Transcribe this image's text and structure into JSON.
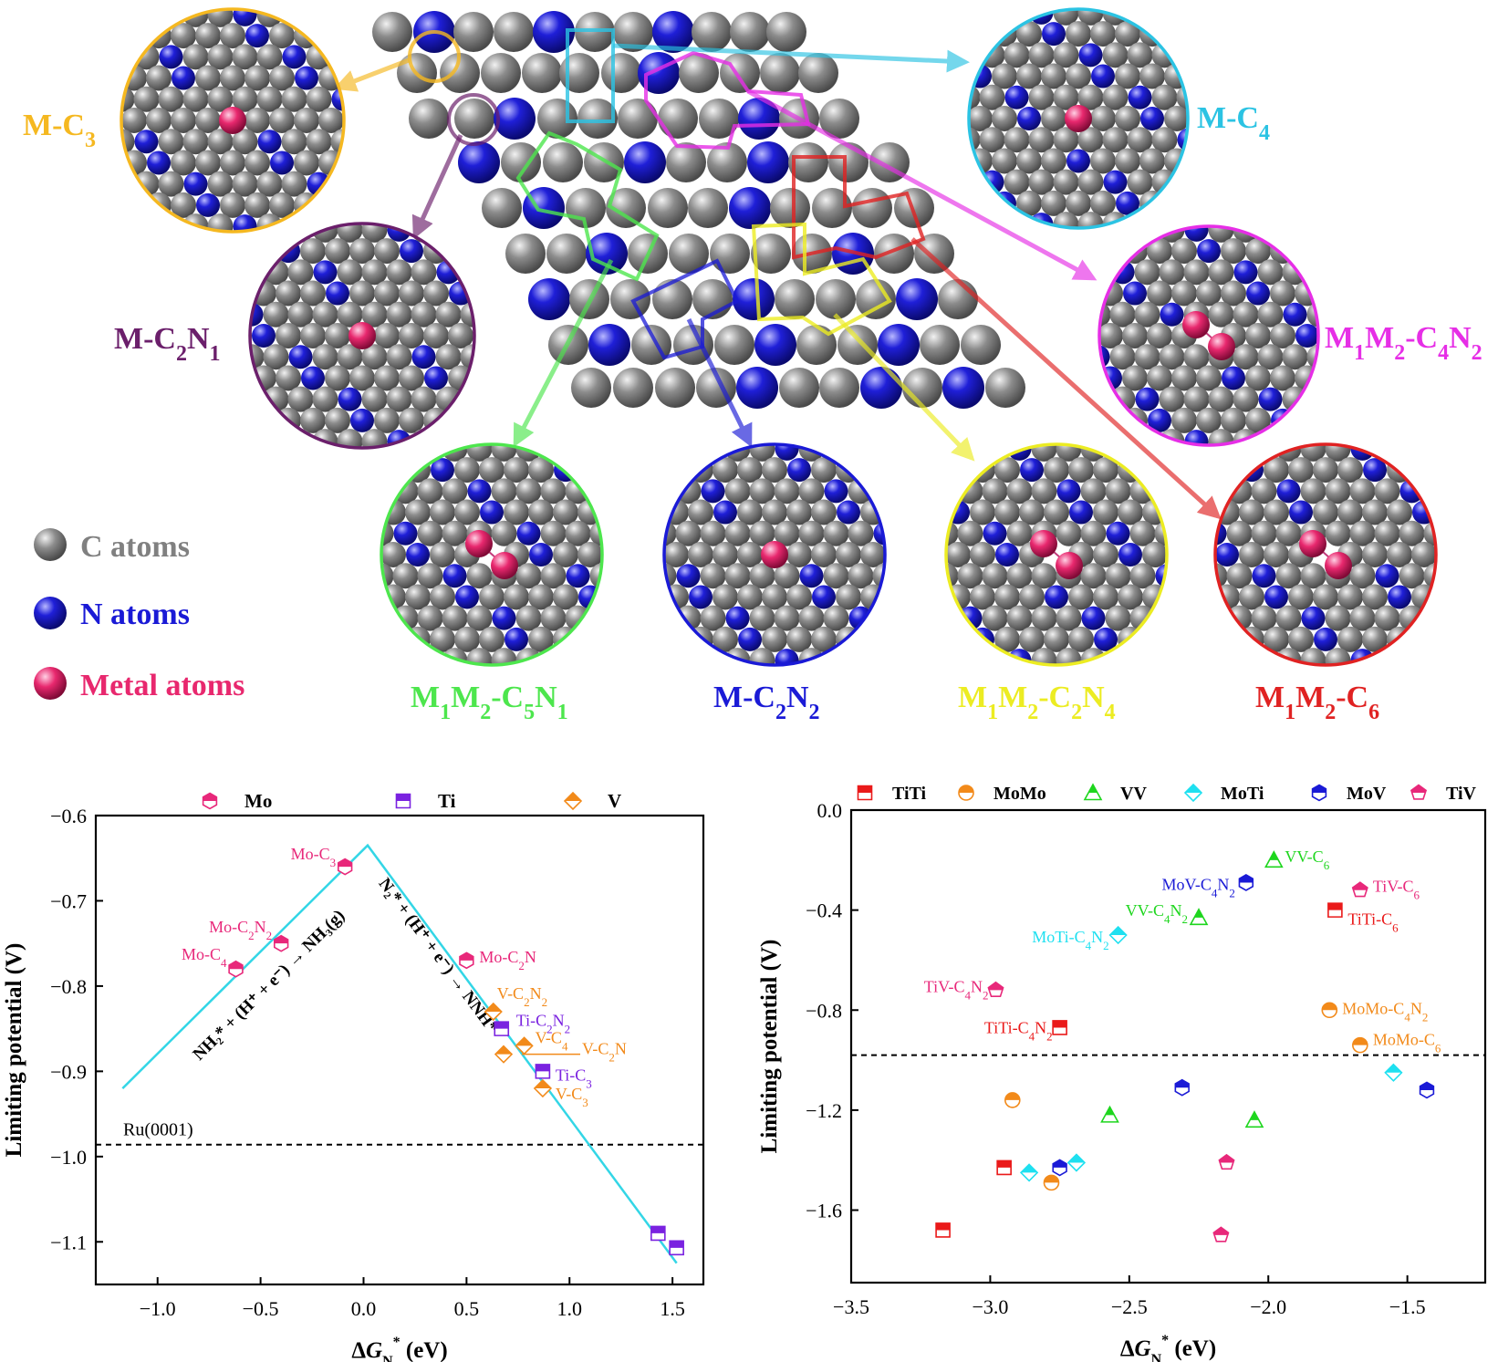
{
  "colors": {
    "carbon": "#7f7f7f",
    "nitrogen": "#1a1ad6",
    "metal": "#e8286e",
    "cyan_line": "#33d6e6",
    "M-C3": "#f5b820",
    "M-C4": "#2bc3e3",
    "M-C2N1": "#6b1f6b",
    "M1M2-C4N2": "#e62ee6",
    "M1M2-C5N1": "#4de64d",
    "M-C2N2": "#1a1ad6",
    "M1M2-C2N4": "#ecec22",
    "M1M2-C6": "#e02222",
    "Mo": "#e8287a",
    "Ti": "#7a22e0",
    "V": "#f28a1a",
    "TiTi": "#ea1a1a",
    "MoMo": "#f28a1a",
    "VV": "#1ed61e",
    "MoTi": "#1ee0f0",
    "MoV": "#1a1ad6",
    "TiV": "#e8287a"
  },
  "structure": {
    "site_labels": {
      "M-C3": "M-C3",
      "M-C4": "M-C4",
      "M-C2N1": "M-C2N1",
      "M1M2-C4N2": "M1M2-C4N2",
      "M1M2-C5N1": "M1M2-C5N1",
      "M-C2N2": "M-C2N2",
      "M1M2-C2N4": "M1M2-C2N4",
      "M1M2-C6": "M1M2-C6"
    },
    "legend": {
      "c_atoms": "C atoms",
      "n_atoms": "N atoms",
      "metal_atoms": "Metal atoms"
    }
  },
  "chart_data": [
    {
      "type": "scatter",
      "xlabel": "ΔGN* (eV)",
      "ylabel": "Limiting potential (V)",
      "xlim": [
        -1.3,
        1.65
      ],
      "ylim": [
        -1.15,
        -0.6
      ],
      "xticks": [
        -1.0,
        -0.5,
        0.0,
        0.5,
        1.0,
        1.5
      ],
      "yticks": [
        -0.6,
        -0.7,
        -0.8,
        -0.9,
        -1.0,
        -1.1
      ],
      "xtick_labels": [
        "−1.0",
        "−0.5",
        "0.0",
        "0.5",
        "1.0",
        "1.5"
      ],
      "ytick_labels": [
        "−0.6",
        "−0.7",
        "−0.8",
        "−0.9",
        "−1.0",
        "−1.1"
      ],
      "legend": [
        "Mo",
        "Ti",
        "V"
      ],
      "legend_position": "top",
      "grid": false,
      "reference": {
        "label": "Ru(0001)",
        "y": -0.986
      },
      "volcano": {
        "x": [
          -1.17,
          0.02,
          1.52
        ],
        "y": [
          -0.92,
          -0.635,
          -1.125
        ],
        "left_label": "NH₂* + (H⁺ + e⁻) → NH₃(g)",
        "right_label": "N₂* + (H⁺ + e⁻) → NNH*"
      },
      "series": [
        {
          "name": "Mo",
          "points": [
            {
              "label": "Mo-C3",
              "x": -0.09,
              "y": -0.66
            },
            {
              "label": "Mo-C2N2",
              "x": -0.4,
              "y": -0.75
            },
            {
              "label": "Mo-C4",
              "x": -0.62,
              "y": -0.78
            },
            {
              "label": "Mo-C2N",
              "x": 0.5,
              "y": -0.77
            }
          ]
        },
        {
          "name": "Ti",
          "points": [
            {
              "label": "Ti-C2N2",
              "x": 0.67,
              "y": -0.85
            },
            {
              "label": "Ti-C3",
              "x": 0.87,
              "y": -0.9
            },
            {
              "label": "",
              "x": 1.43,
              "y": -1.09
            },
            {
              "label": "",
              "x": 1.52,
              "y": -1.107
            }
          ]
        },
        {
          "name": "V",
          "points": [
            {
              "label": "V-C2N2",
              "x": 0.63,
              "y": -0.83
            },
            {
              "label": "V-C4",
              "x": 0.78,
              "y": -0.87
            },
            {
              "label": "V-C2N",
              "x": 0.68,
              "y": -0.88
            },
            {
              "label": "V-C3",
              "x": 0.87,
              "y": -0.92
            }
          ]
        }
      ]
    },
    {
      "type": "scatter",
      "xlabel": "ΔGN* (eV)",
      "ylabel": "Limiting potential (V)",
      "xlim": [
        -3.5,
        -1.22
      ],
      "ylim": [
        -1.89,
        0.0
      ],
      "xticks": [
        -3.5,
        -3.0,
        -2.5,
        -2.0,
        -1.5
      ],
      "yticks": [
        0.0,
        -0.4,
        -0.8,
        -1.2,
        -1.6
      ],
      "xtick_labels": [
        "−3.5",
        "−3.0",
        "−2.5",
        "−2.0",
        "−1.5"
      ],
      "ytick_labels": [
        "0.0",
        "−0.4",
        "−0.8",
        "−1.2",
        "−1.6"
      ],
      "legend": [
        "TiTi",
        "MoMo",
        "VV",
        "MoTi",
        "MoV",
        "TiV"
      ],
      "legend_position": "top",
      "grid": false,
      "reference": {
        "label": "",
        "y": -0.98
      },
      "series": [
        {
          "name": "TiTi",
          "points": [
            {
              "label": "TiTi-C6",
              "x": -1.76,
              "y": -0.4
            },
            {
              "label": "TiTi-C4N2",
              "x": -2.75,
              "y": -0.87
            },
            {
              "label": "",
              "x": -2.95,
              "y": -1.43
            },
            {
              "label": "",
              "x": -3.17,
              "y": -1.68
            }
          ]
        },
        {
          "name": "MoMo",
          "points": [
            {
              "label": "MoMo-C4N2",
              "x": -1.78,
              "y": -0.8
            },
            {
              "label": "MoMo-C6",
              "x": -1.67,
              "y": -0.94
            },
            {
              "label": "",
              "x": -2.92,
              "y": -1.16
            },
            {
              "label": "",
              "x": -2.78,
              "y": -1.49
            }
          ]
        },
        {
          "name": "VV",
          "points": [
            {
              "label": "VV-C6",
              "x": -1.98,
              "y": -0.2
            },
            {
              "label": "VV-C4N2",
              "x": -2.25,
              "y": -0.43
            },
            {
              "label": "",
              "x": -2.57,
              "y": -1.22
            },
            {
              "label": "",
              "x": -2.05,
              "y": -1.24
            }
          ]
        },
        {
          "name": "MoTi",
          "points": [
            {
              "label": "MoTi-C4N2",
              "x": -2.54,
              "y": -0.5
            },
            {
              "label": "",
              "x": -1.55,
              "y": -1.05
            },
            {
              "label": "",
              "x": -2.86,
              "y": -1.45
            },
            {
              "label": "",
              "x": -2.69,
              "y": -1.41
            }
          ]
        },
        {
          "name": "MoV",
          "points": [
            {
              "label": "MoV-C4N2",
              "x": -2.08,
              "y": -0.29
            },
            {
              "label": "",
              "x": -2.31,
              "y": -1.11
            },
            {
              "label": "",
              "x": -1.43,
              "y": -1.12
            },
            {
              "label": "",
              "x": -2.75,
              "y": -1.43
            }
          ]
        },
        {
          "name": "TiV",
          "points": [
            {
              "label": "TiV-C6",
              "x": -1.67,
              "y": -0.32
            },
            {
              "label": "TiV-C4N2",
              "x": -2.98,
              "y": -0.72
            },
            {
              "label": "",
              "x": -2.15,
              "y": -1.41
            },
            {
              "label": "",
              "x": -2.17,
              "y": -1.7
            }
          ]
        }
      ]
    }
  ]
}
